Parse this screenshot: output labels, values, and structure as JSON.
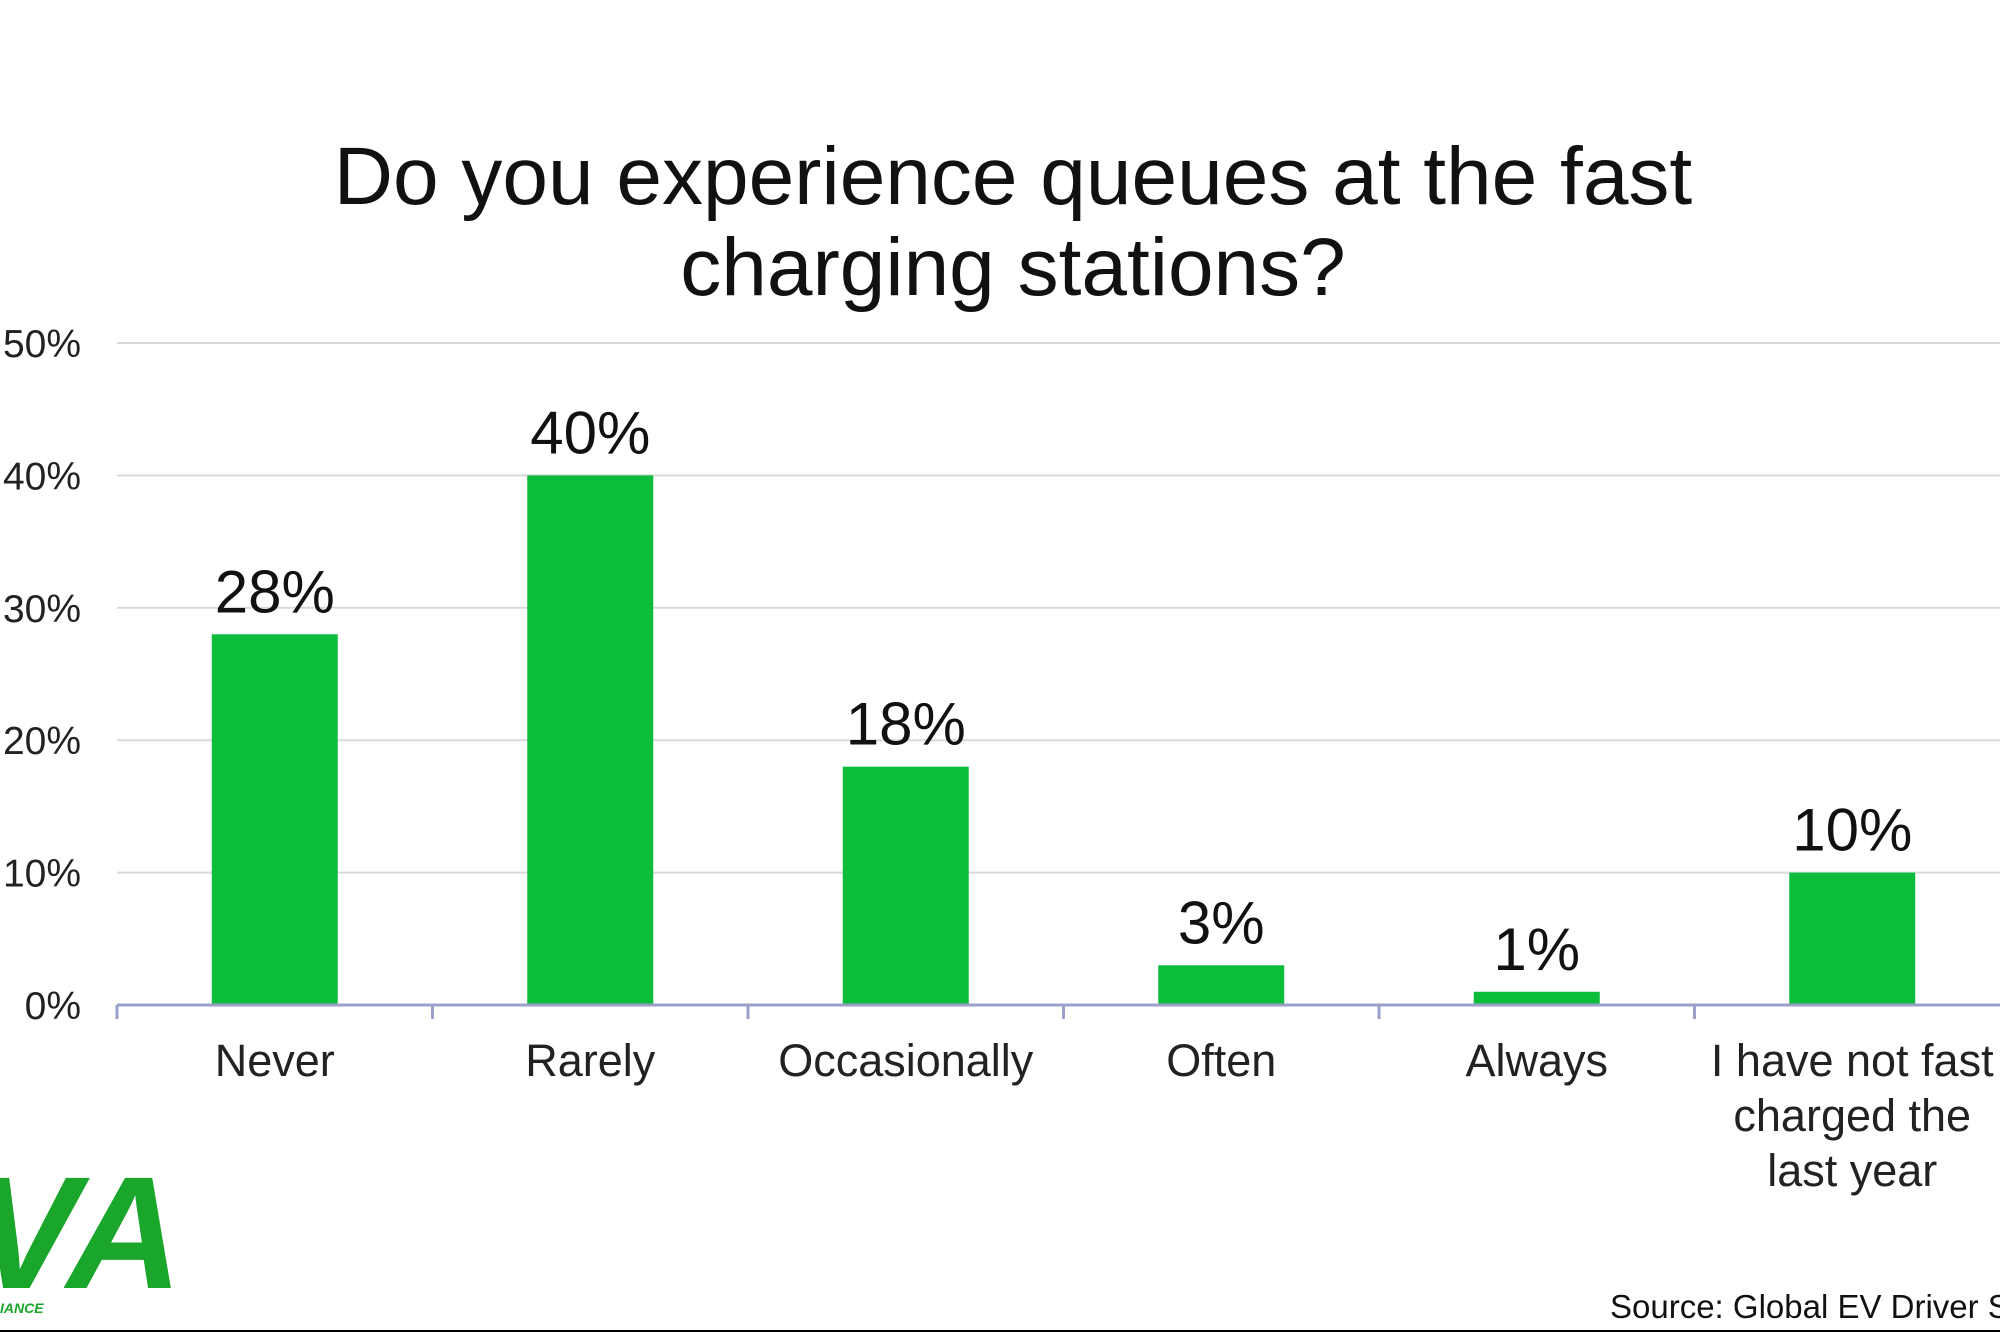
{
  "chart_data": {
    "type": "bar",
    "title_lines": [
      "Do you experience queues at the fast",
      "charging stations?"
    ],
    "categories": [
      [
        "Never"
      ],
      [
        "Rarely"
      ],
      [
        "Occasionally"
      ],
      [
        "Often"
      ],
      [
        "Always"
      ],
      [
        "I have not fast",
        "charged the",
        "last year"
      ]
    ],
    "values": [
      28,
      40,
      18,
      3,
      1,
      10
    ],
    "data_labels": [
      "28%",
      "40%",
      "18%",
      "3%",
      "1%",
      "10%"
    ],
    "ylim": [
      0,
      50
    ],
    "yticks": [
      0,
      10,
      20,
      30,
      40,
      50
    ],
    "ytick_labels": [
      "0%",
      "10%",
      "20%",
      "30%",
      "40%",
      "50%"
    ],
    "grid": true,
    "bar_color": "#0bbd3a",
    "grid_color": "#d9d9d9",
    "axis_color": "#9aa0c8"
  },
  "footer": {
    "source_text": "Source: Global EV Driver S",
    "logo_text": "VA",
    "logo_subtext": "IANCE",
    "logo_color": "#1aa62a"
  }
}
